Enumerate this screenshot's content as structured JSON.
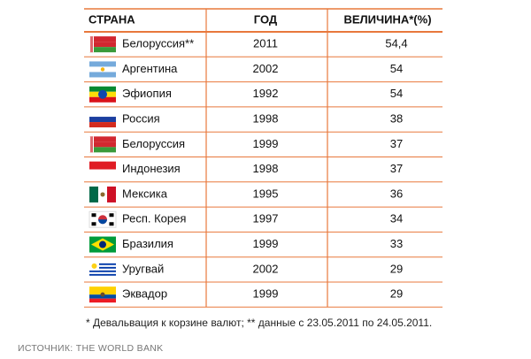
{
  "table": {
    "header": [
      "СТРАНА",
      "ГОД",
      "ВЕЛИЧИНА*(%)"
    ],
    "rows": [
      [
        "Белоруссия**",
        "2011",
        "54,4"
      ],
      [
        "Аргентина",
        "2002",
        "54"
      ],
      [
        "Эфиопия",
        "1992",
        "54"
      ],
      [
        "Россия",
        "1998",
        "38"
      ],
      [
        "Белоруссия",
        "1999",
        "37"
      ],
      [
        "Индонезия",
        "1998",
        "37"
      ],
      [
        "Мексика",
        "1995",
        "36"
      ],
      [
        "Респ. Корея",
        "1997",
        "34"
      ],
      [
        "Бразилия",
        "1999",
        "33"
      ],
      [
        "Уругвай",
        "2002",
        "29"
      ],
      [
        "Эквадор",
        "1999",
        "29"
      ]
    ]
  },
  "footnote": "* Девальвация к корзине валют; ** данные с 23.05.2011 по 24.05.2011.",
  "source": "ИСТОЧНИК:  THE WORLD BANK"
}
